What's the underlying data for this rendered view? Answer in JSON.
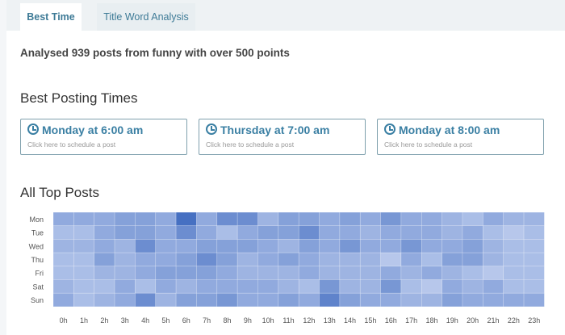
{
  "tabs": [
    {
      "label": "Best Time",
      "active": true
    },
    {
      "label": "Title Word Analysis",
      "active": false
    }
  ],
  "summary": "Analysed 939 posts from funny with over 500 points",
  "best_times": {
    "heading": "Best Posting Times",
    "cards": [
      {
        "label": "Monday at 6:00 am",
        "sub": "Click here to schedule a post",
        "icon": "clock-icon"
      },
      {
        "label": "Thursday at 7:00 am",
        "sub": "Click here to schedule a post",
        "icon": "clock-icon"
      },
      {
        "label": "Monday at 8:00 am",
        "sub": "Click here to schedule a post",
        "icon": "clock-icon"
      }
    ]
  },
  "all_top_posts": {
    "heading": "All Top Posts"
  },
  "colors": {
    "accent": "#3a7fa3",
    "heat_low": "#c3d1f0",
    "heat_high": "#4670c2"
  },
  "chart_data": {
    "type": "heatmap",
    "title": "",
    "rows": [
      "Mon",
      "Tue",
      "Wed",
      "Thu",
      "Fri",
      "Sat",
      "Sun"
    ],
    "columns": [
      "0h",
      "1h",
      "2h",
      "3h",
      "4h",
      "5h",
      "6h",
      "7h",
      "8h",
      "9h",
      "10h",
      "11h",
      "12h",
      "13h",
      "14h",
      "15h",
      "16h",
      "17h",
      "18h",
      "19h",
      "20h",
      "21h",
      "22h",
      "23h"
    ],
    "value_note": "relative intensity 0-10 (estimated)",
    "values": [
      [
        4,
        4,
        4,
        5,
        5,
        4,
        10,
        4,
        7,
        7,
        3,
        5,
        5,
        4,
        5,
        4,
        6,
        4,
        4,
        3,
        2,
        4,
        3,
        3
      ],
      [
        2,
        2,
        4,
        5,
        5,
        4,
        7,
        4,
        2,
        4,
        5,
        5,
        7,
        4,
        4,
        3,
        4,
        4,
        4,
        3,
        4,
        2,
        1,
        2
      ],
      [
        3,
        3,
        4,
        3,
        7,
        4,
        4,
        5,
        5,
        5,
        4,
        3,
        5,
        4,
        6,
        4,
        4,
        6,
        4,
        4,
        5,
        3,
        2,
        2
      ],
      [
        2,
        2,
        5,
        3,
        4,
        4,
        5,
        7,
        5,
        3,
        4,
        5,
        4,
        3,
        3,
        3,
        1,
        4,
        2,
        5,
        5,
        3,
        2,
        2
      ],
      [
        2,
        2,
        3,
        3,
        4,
        5,
        5,
        5,
        4,
        3,
        3,
        3,
        4,
        3,
        3,
        3,
        4,
        3,
        4,
        3,
        2,
        1,
        2,
        2
      ],
      [
        3,
        2,
        2,
        4,
        2,
        4,
        3,
        4,
        4,
        4,
        4,
        3,
        2,
        6,
        3,
        3,
        6,
        2,
        1,
        4,
        3,
        4,
        2,
        2
      ],
      [
        4,
        2,
        3,
        4,
        7,
        3,
        5,
        5,
        6,
        4,
        4,
        5,
        4,
        8,
        5,
        4,
        4,
        3,
        3,
        5,
        4,
        4,
        4,
        4
      ]
    ]
  }
}
